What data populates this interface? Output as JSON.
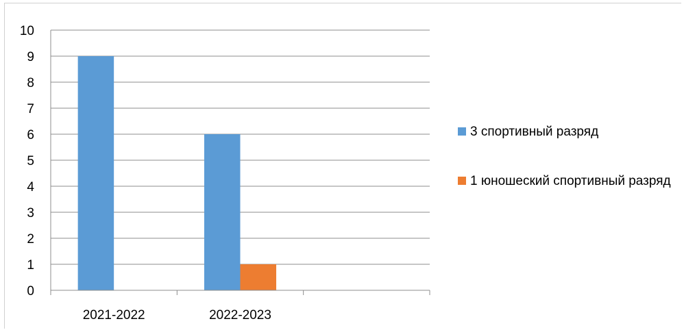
{
  "chart_data": {
    "type": "bar",
    "title": "",
    "xlabel": "",
    "ylabel": "",
    "categories": [
      "2021-2022",
      "2022-2023",
      ""
    ],
    "series": [
      {
        "name": "3 спортивный разряд",
        "values": [
          9,
          6,
          null
        ],
        "color": "#5b9bd5"
      },
      {
        "name": "1 юношеский спортивный разряд",
        "values": [
          null,
          1,
          null
        ],
        "color": "#ed7d31"
      }
    ],
    "ylim": [
      0,
      10
    ],
    "yticks": [
      0,
      1,
      2,
      3,
      4,
      5,
      6,
      7,
      8,
      9,
      10
    ],
    "grid": true,
    "legend_position": "right",
    "gridline_color": "#8c8c8c"
  }
}
